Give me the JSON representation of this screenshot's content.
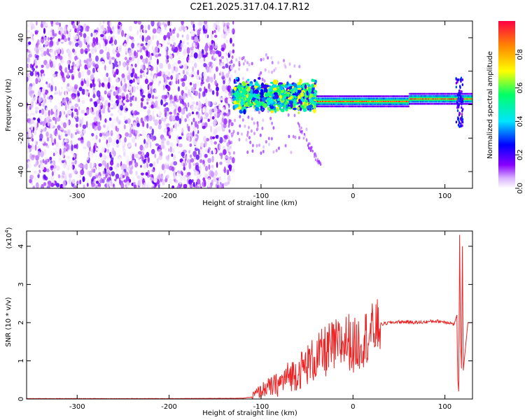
{
  "title": "C2E1.2025.317.04.17.R12",
  "chart_data": [
    {
      "type": "heatmap",
      "name": "spectrogram",
      "xlabel": "Height of straight line (km)",
      "ylabel": "Frequency (Hz)",
      "xlim": [
        -355,
        130
      ],
      "ylim": [
        -50,
        50
      ],
      "xticks": [
        -300,
        -200,
        -100,
        0,
        100
      ],
      "yticks": [
        -40,
        -20,
        0,
        20,
        40
      ],
      "colorbar": {
        "label": "Normalized spectral amplitude",
        "range": [
          0,
          1
        ],
        "ticks": [
          "0.0",
          "0.2",
          "0.4",
          "0.6",
          "0.8"
        ],
        "tick_values": [
          0,
          0.2,
          0.4,
          0.6,
          0.8
        ],
        "colormap": [
          "#ffffff",
          "#d9b3ff",
          "#8800ff",
          "#0000ff",
          "#00e5ff",
          "#00ff66",
          "#ffff00",
          "#ff8800",
          "#ff0044"
        ]
      },
      "regions": [
        {
          "x_range": [
            -355,
            -130
          ],
          "f_range": [
            -50,
            50
          ],
          "amplitude": "low, broadband noise"
        },
        {
          "x_range": [
            -130,
            -40
          ],
          "center_freq": 5,
          "spread_hz": 8,
          "amplitude": "medium to high"
        },
        {
          "x_range": [
            -40,
            130
          ],
          "center_freq": 2,
          "spread_hz": 2,
          "amplitude": "high, narrow tone"
        }
      ]
    },
    {
      "type": "line",
      "name": "snr",
      "xlabel": "Height of straight line (km)",
      "ylabel": "SNR (10 * v/v)",
      "y_multiplier": "(x10",
      "y_multiplier_exp": "4",
      "y_multiplier_close": ")",
      "xlim": [
        -355,
        130
      ],
      "ylim": [
        0,
        4.4
      ],
      "xticks": [
        -300,
        -200,
        -100,
        0,
        100
      ],
      "yticks": [
        0,
        1,
        2,
        3,
        4
      ],
      "color": "#ee2222",
      "x": [
        -355,
        -300,
        -200,
        -120,
        -110,
        -105,
        -100,
        -95,
        -90,
        -85,
        -80,
        -75,
        -70,
        -65,
        -60,
        -55,
        -50,
        -45,
        -40,
        -35,
        -30,
        -25,
        -20,
        -15,
        -10,
        -5,
        0,
        5,
        10,
        15,
        20,
        25,
        30,
        40,
        50,
        60,
        70,
        80,
        90,
        100,
        105,
        110,
        113,
        114,
        115,
        116,
        117,
        118,
        119,
        120,
        125,
        130
      ],
      "y": [
        0.01,
        0.01,
        0.01,
        0.02,
        0.05,
        0.15,
        0.2,
        0.3,
        0.3,
        0.35,
        0.4,
        0.5,
        0.6,
        0.65,
        0.7,
        0.8,
        0.9,
        1.0,
        1.05,
        1.15,
        1.25,
        1.3,
        1.35,
        1.4,
        1.5,
        1.55,
        1.35,
        1.45,
        1.55,
        1.65,
        1.75,
        1.85,
        1.95,
        2.0,
        2.02,
        2.02,
        2.0,
        2.02,
        2.04,
        2.02,
        2.0,
        1.95,
        2.2,
        0.5,
        0.2,
        4.3,
        1.5,
        0.8,
        4.0,
        0.75,
        2.0,
        2.0
      ]
    }
  ]
}
